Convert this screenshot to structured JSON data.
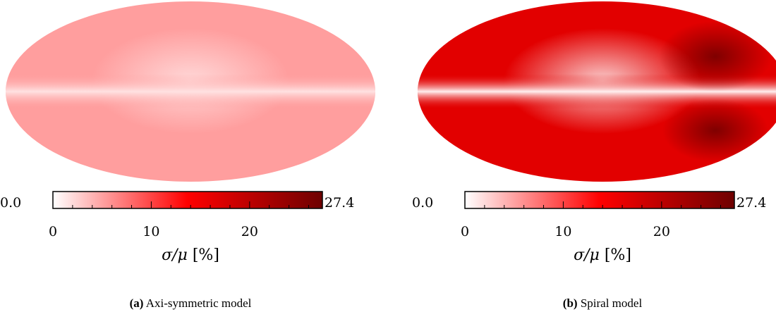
{
  "figures": [
    {
      "id": "a",
      "map_fill": "#ff9e9e",
      "plane_color": "#ffe2e2",
      "dark_spots": false,
      "colorbar": {
        "min_label": "0.0",
        "max_label": "27.4",
        "ticks": [
          {
            "value": 0,
            "label": "0"
          },
          {
            "value": 10,
            "label": "10"
          },
          {
            "value": 20,
            "label": "20"
          }
        ],
        "vmax": 27.4
      },
      "axis_label_symbol": "σ/μ",
      "axis_label_unit": "[%]",
      "caption_tag": "(a)",
      "caption_text": " Axi-symmetric model"
    },
    {
      "id": "b",
      "map_fill": "#e20000",
      "plane_color": "#fff0f0",
      "dark_spots": true,
      "colorbar": {
        "min_label": "0.0",
        "max_label": "27.4",
        "ticks": [
          {
            "value": 0,
            "label": "0"
          },
          {
            "value": 10,
            "label": "10"
          },
          {
            "value": 20,
            "label": "20"
          }
        ],
        "vmax": 27.4
      },
      "axis_label_symbol": "σ/μ",
      "axis_label_unit": "[%]",
      "caption_tag": "(b)",
      "caption_text": " Spiral model"
    }
  ],
  "colormap": [
    "#ffffff",
    "#ff0000",
    "#6e0000"
  ]
}
